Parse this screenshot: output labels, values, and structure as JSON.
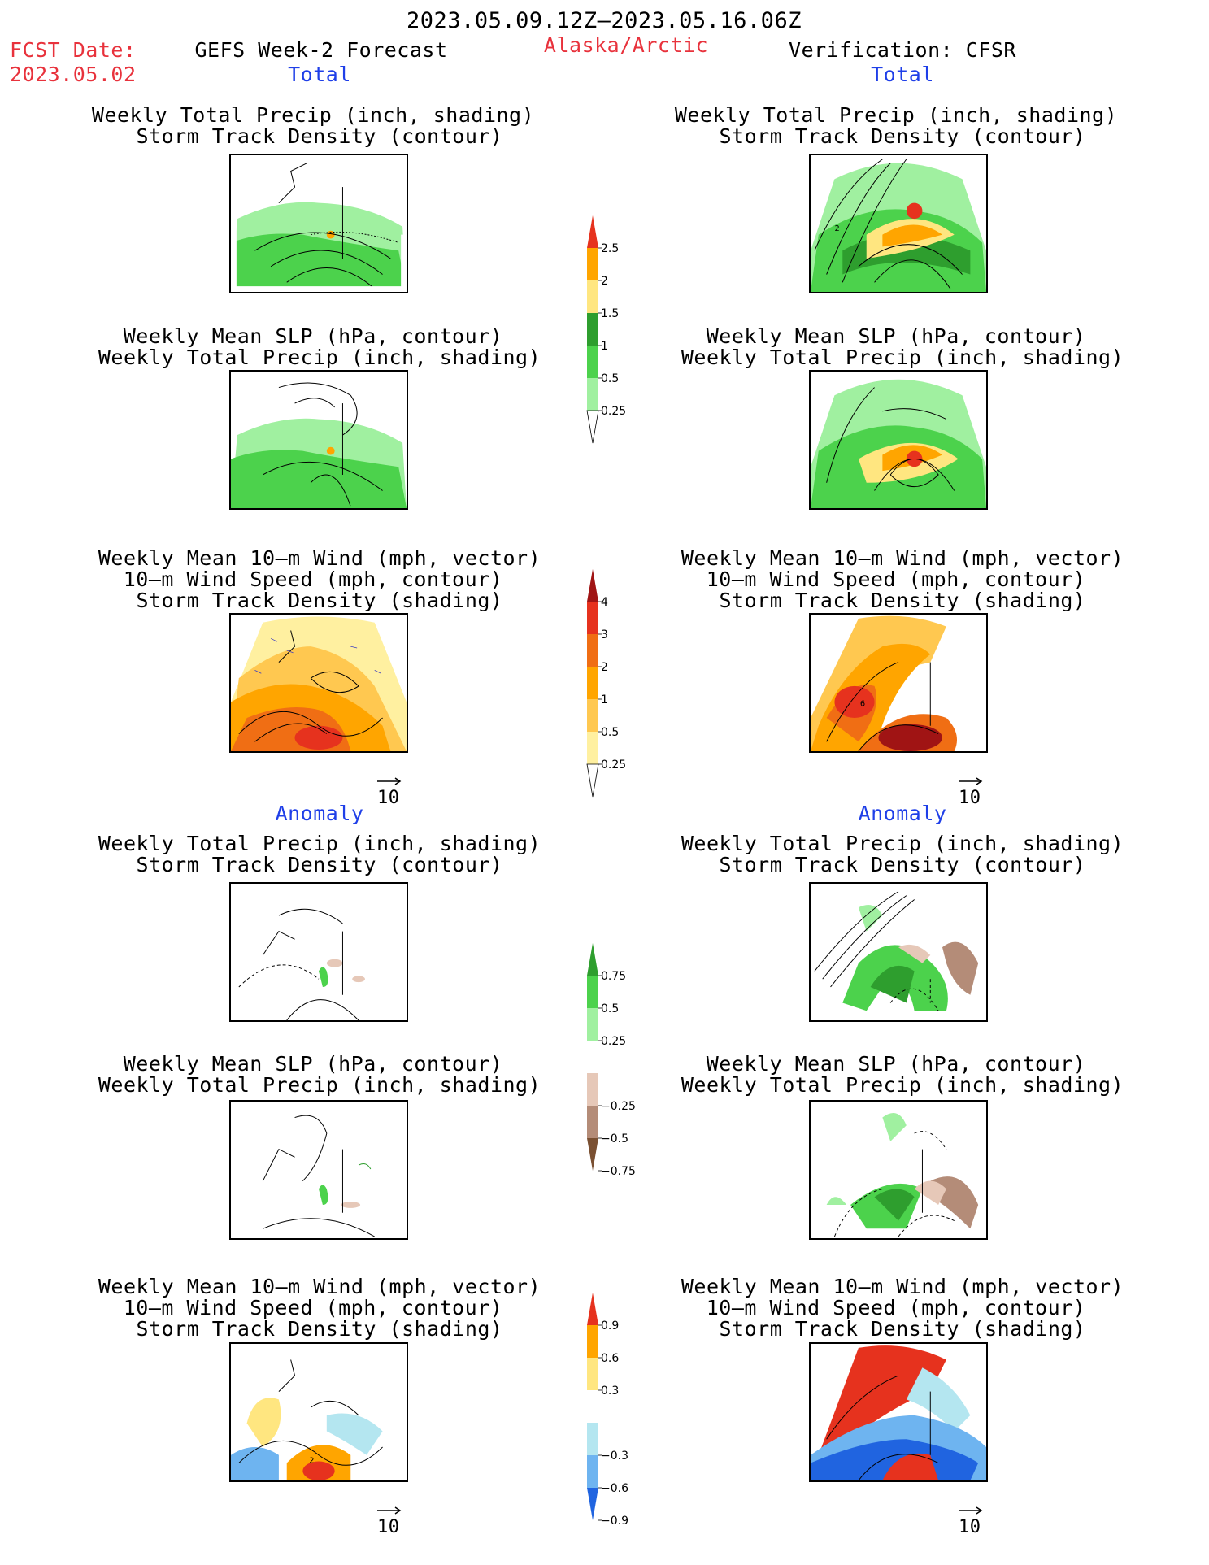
{
  "header": {
    "date_range": "2023.05.09.12Z–2023.05.16.06Z",
    "fcst_label": "FCST Date:",
    "fcst_date": "2023.05.02",
    "forecast_title": "GEFS Week-2 Forecast",
    "region": "Alaska/Arctic",
    "verification": "Verification: CFSR"
  },
  "sections": {
    "total": "Total",
    "anomaly": "Anomaly"
  },
  "panel_titles": {
    "precip_storm": [
      "Weekly Total Precip (inch, shading)",
      "Storm Track Density (contour)"
    ],
    "slp_precip": [
      "Weekly Mean SLP (hPa, contour)",
      "Weekly Total Precip (inch, shading)"
    ],
    "wind_storm": [
      "Weekly Mean 10–m Wind (mph, vector)",
      "10–m Wind Speed (mph, contour)",
      "Storm Track Density (shading)"
    ]
  },
  "vector_ref": "10",
  "colorbars": {
    "precip_total": {
      "labels": [
        "2.5",
        "2",
        "1.5",
        "1",
        "0.5",
        "0.25"
      ],
      "colors": [
        "#e6321e",
        "#ffa500",
        "#ffe680",
        "#2e9e2e",
        "#4cd24c",
        "#a0f0a0"
      ]
    },
    "storm_total": {
      "labels": [
        "4",
        "3",
        "2",
        "1",
        "0.5",
        "0.25"
      ],
      "colors": [
        "#a01414",
        "#e6321e",
        "#f06e14",
        "#ffa500",
        "#ffc850",
        "#fff0a0"
      ]
    },
    "precip_anom": {
      "labels": [
        "0.75",
        "0.5",
        "0.25",
        "−0.25",
        "−0.5",
        "−0.75"
      ],
      "colors": [
        "#2e9e2e",
        "#4cd24c",
        "#a0f0a0",
        "#ffffff",
        "#e6c8b8",
        "#b48c78",
        "#7a5032"
      ]
    },
    "storm_anom": {
      "labels": [
        "0.9",
        "0.6",
        "0.3",
        "−0.3",
        "−0.6",
        "−0.9"
      ],
      "colors": [
        "#e6321e",
        "#ffa500",
        "#ffe680",
        "#ffffff",
        "#b4e6f0",
        "#6eb4f0",
        "#2064e0"
      ]
    }
  },
  "map_labels": {
    "r1_right": "2",
    "r3_right": "6",
    "r6_left": "2"
  }
}
